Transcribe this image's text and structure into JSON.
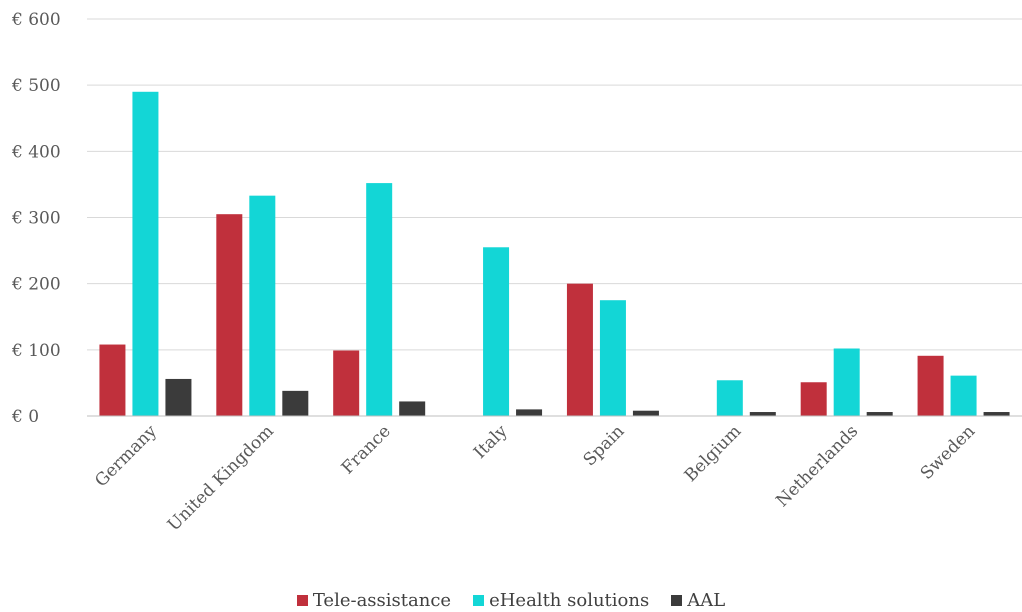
{
  "chart_data": {
    "type": "bar",
    "title": "",
    "xlabel": "",
    "ylabel": "",
    "ylim": [
      0,
      600
    ],
    "yticks": [
      0,
      100,
      200,
      300,
      400,
      500,
      600
    ],
    "ytick_labels": [
      "€ 0",
      "€ 100",
      "€ 200",
      "€ 300",
      "€ 400",
      "€ 500",
      "€ 600"
    ],
    "grid": true,
    "legend_position": "bottom",
    "categories": [
      "Germany",
      "United Kingdom",
      "France",
      "Italy",
      "Spain",
      "Belgium",
      "Netherlands",
      "Sweden"
    ],
    "series": [
      {
        "name": "Tele-assistance",
        "color": "#c0303c",
        "values": [
          108,
          305,
          99,
          0,
          200,
          0,
          51,
          91
        ]
      },
      {
        "name": "eHealth solutions",
        "color": "#13d6d6",
        "values": [
          490,
          333,
          352,
          255,
          175,
          54,
          102,
          61
        ]
      },
      {
        "name": "AAL",
        "color": "#3b3b3b",
        "values": [
          56,
          38,
          22,
          10,
          8,
          6,
          6,
          6
        ]
      }
    ]
  }
}
